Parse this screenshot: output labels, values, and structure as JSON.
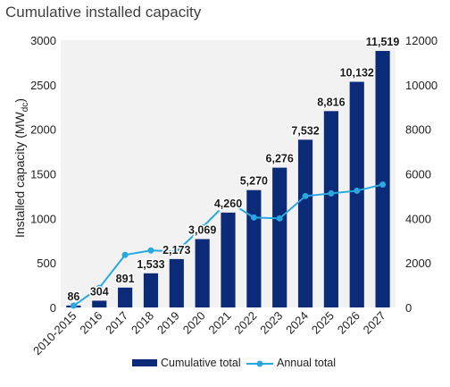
{
  "chart_data": {
    "type": "bar+line",
    "title": "Cumulative installed capacity",
    "categories": [
      "2010-2015",
      "2016",
      "2017",
      "2018",
      "2019",
      "2020",
      "2021",
      "2022",
      "2023",
      "2024",
      "2025",
      "2026",
      "2027"
    ],
    "series": [
      {
        "name": "Cumulative total",
        "type": "bar",
        "axis": "right",
        "color": "#0b2a78",
        "values": [
          86,
          304,
          891,
          1533,
          2173,
          3069,
          4260,
          5270,
          6276,
          7532,
          8816,
          10132,
          11519
        ],
        "labels": [
          "86",
          "304",
          "891",
          "1,533",
          "2,173",
          "3,069",
          "4,260",
          "5,270",
          "6,276",
          "7,532",
          "8,816",
          "10,132",
          "11,519"
        ]
      },
      {
        "name": "Annual total",
        "type": "line",
        "axis": "left",
        "color": "#29a8e0",
        "values": [
          20,
          220,
          590,
          640,
          630,
          900,
          1190,
          1010,
          1000,
          1250,
          1280,
          1310,
          1380
        ]
      }
    ],
    "ylabel": "Installed capacity (MWdc)",
    "ylabel_main": "Installed capacity (MW",
    "ylabel_sub": "dc",
    "ylabel_close": ")",
    "left_axis": {
      "min": 0,
      "max": 3000,
      "ticks": [
        "0",
        "500",
        "1000",
        "1500",
        "2000",
        "2500",
        "3000"
      ]
    },
    "right_axis": {
      "min": 0,
      "max": 12000,
      "ticks": [
        "0",
        "2000",
        "4000",
        "6000",
        "8000",
        "10000",
        "12000"
      ]
    },
    "grid": false,
    "legend_position": "bottom",
    "plot_background": "#f2f2f2"
  }
}
